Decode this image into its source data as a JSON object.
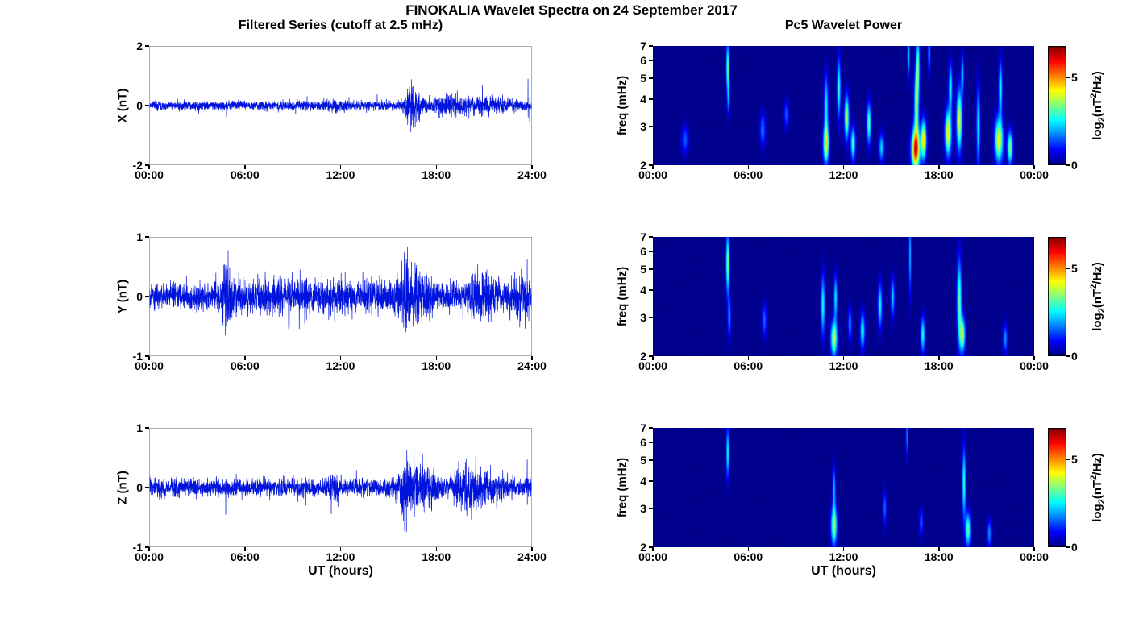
{
  "figure": {
    "title": "FINOKALIA Wavelet Spectra on 24 September 2017",
    "left_column_title": "Filtered Series (cutoff at 2.5 mHz)",
    "right_column_title": "Pc5 Wavelet Power",
    "x_axis_label": "UT (hours)",
    "colorbar_label_parts": [
      "log",
      "2",
      "(nT",
      "2",
      "/Hz)"
    ],
    "colorbar_ticks": [
      0,
      5
    ],
    "line_color": "#0013dd",
    "background_color": "#ffffff"
  },
  "chart_data": [
    {
      "id": "x_filtered_series",
      "type": "line",
      "ylabel": "X (nT)",
      "xlim": [
        0,
        24
      ],
      "ylim": [
        -2,
        2
      ],
      "yticks": [
        -2,
        0,
        2
      ],
      "xticks": [
        0,
        6,
        12,
        18,
        24
      ],
      "xtick_labels": [
        "00:00",
        "06:00",
        "12:00",
        "18:00",
        "24:00"
      ],
      "line_color": "#0013dd",
      "noise_base": 0.075,
      "seed": 101,
      "bursts": [
        {
          "t": 11.5,
          "width": 0.5,
          "amp": 0.04
        },
        {
          "t": 16.4,
          "width": 0.35,
          "amp": 0.26
        },
        {
          "t": 17.0,
          "width": 0.3,
          "amp": 0.16
        },
        {
          "t": 18.6,
          "width": 0.5,
          "amp": 0.09
        },
        {
          "t": 19.6,
          "width": 0.8,
          "amp": 0.07
        },
        {
          "t": 21.0,
          "width": 0.6,
          "amp": 0.07
        },
        {
          "t": 22.3,
          "width": 0.5,
          "amp": 0.07
        }
      ],
      "spikes": [
        {
          "t": 4.85,
          "amp": -0.28
        },
        {
          "t": 9.9,
          "amp": 0.25
        },
        {
          "t": 14.3,
          "amp": 0.22
        },
        {
          "t": 16.45,
          "amp": 0.5
        },
        {
          "t": 19.6,
          "amp": 0.32
        },
        {
          "t": 20.9,
          "amp": 0.4
        },
        {
          "t": 23.75,
          "amp": 0.8
        },
        {
          "t": 23.85,
          "amp": -0.45
        }
      ]
    },
    {
      "id": "y_filtered_series",
      "type": "line",
      "ylabel": "Y (nT)",
      "xlim": [
        0,
        24
      ],
      "ylim": [
        -1,
        1
      ],
      "yticks": [
        -1,
        0,
        1
      ],
      "xticks": [
        0,
        6,
        12,
        18,
        24
      ],
      "xtick_labels": [
        "00:00",
        "06:00",
        "12:00",
        "18:00",
        "24:00"
      ],
      "line_color": "#0013dd",
      "noise_base": 0.11,
      "seed": 202,
      "bursts": [
        {
          "t": 4.9,
          "width": 0.25,
          "amp": 0.2
        },
        {
          "t": 8.0,
          "width": 2.0,
          "amp": 0.035
        },
        {
          "t": 12.0,
          "width": 2.5,
          "amp": 0.04
        },
        {
          "t": 16.2,
          "width": 0.4,
          "amp": 0.2
        },
        {
          "t": 17.3,
          "width": 0.5,
          "amp": 0.09
        },
        {
          "t": 21.0,
          "width": 0.7,
          "amp": 0.09
        },
        {
          "t": 23.3,
          "width": 0.4,
          "amp": 0.09
        }
      ],
      "spikes": [
        {
          "t": 4.95,
          "amp": 0.48
        },
        {
          "t": 6.2,
          "amp": -0.3
        },
        {
          "t": 9.85,
          "amp": 0.45
        },
        {
          "t": 13.4,
          "amp": 0.34
        },
        {
          "t": 15.3,
          "amp": 0.33
        },
        {
          "t": 16.3,
          "amp": 0.5
        },
        {
          "t": 20.6,
          "amp": 0.38
        },
        {
          "t": 23.7,
          "amp": 0.62
        },
        {
          "t": 23.8,
          "amp": -0.42
        }
      ]
    },
    {
      "id": "z_filtered_series",
      "type": "line",
      "ylabel": "Z (nT)",
      "xlim": [
        0,
        24
      ],
      "ylim": [
        -1,
        1
      ],
      "yticks": [
        -1,
        0,
        1
      ],
      "xticks": [
        0,
        6,
        12,
        18,
        24
      ],
      "xtick_labels": [
        "00:00",
        "06:00",
        "12:00",
        "18:00",
        "24:00"
      ],
      "line_color": "#0013dd",
      "noise_base": 0.075,
      "seed": 303,
      "bursts": [
        {
          "t": 11.5,
          "width": 0.4,
          "amp": 0.05
        },
        {
          "t": 16.3,
          "width": 0.5,
          "amp": 0.2
        },
        {
          "t": 17.6,
          "width": 0.4,
          "amp": 0.11
        },
        {
          "t": 19.6,
          "width": 0.5,
          "amp": 0.13
        },
        {
          "t": 20.6,
          "width": 0.5,
          "amp": 0.11
        },
        {
          "t": 22.0,
          "width": 0.6,
          "amp": 0.05
        }
      ],
      "spikes": [
        {
          "t": 4.8,
          "amp": -0.34
        },
        {
          "t": 10.0,
          "amp": 0.28
        },
        {
          "t": 13.0,
          "amp": 0.22
        },
        {
          "t": 16.35,
          "amp": 0.48
        },
        {
          "t": 16.9,
          "amp": 0.42
        },
        {
          "t": 19.7,
          "amp": 0.38
        },
        {
          "t": 23.7,
          "amp": 0.36
        }
      ]
    },
    {
      "id": "x_wavelet_power",
      "type": "heatmap",
      "ylabel": "freq (mHz)",
      "xlim": [
        0,
        24
      ],
      "ylim": [
        2,
        7
      ],
      "yscale": "log",
      "yticks": [
        2,
        3,
        4,
        5,
        6,
        7
      ],
      "xticks": [
        0,
        6,
        12,
        18,
        24
      ],
      "xtick_labels": [
        "00:00",
        "06:00",
        "12:00",
        "18:00",
        "00:00"
      ],
      "clim": [
        0,
        6.8
      ],
      "colormap": "jet",
      "seed": 11,
      "events": [
        {
          "t": 2.0,
          "f": 2.6,
          "dt": 0.15,
          "dlf": 0.1,
          "amp": 1.4
        },
        {
          "t": 4.7,
          "f": 5.6,
          "dt": 0.07,
          "dlf": 0.18,
          "amp": 3.2
        },
        {
          "t": 4.75,
          "f": 4.0,
          "dt": 0.06,
          "dlf": 0.12,
          "amp": 1.6
        },
        {
          "t": 6.9,
          "f": 2.9,
          "dt": 0.12,
          "dlf": 0.12,
          "amp": 1.6
        },
        {
          "t": 8.4,
          "f": 3.4,
          "dt": 0.1,
          "dlf": 0.1,
          "amp": 1.4
        },
        {
          "t": 10.9,
          "f": 2.5,
          "dt": 0.12,
          "dlf": 0.14,
          "amp": 4.2
        },
        {
          "t": 10.9,
          "f": 3.8,
          "dt": 0.09,
          "dlf": 0.22,
          "amp": 2.4
        },
        {
          "t": 11.7,
          "f": 4.5,
          "dt": 0.08,
          "dlf": 0.22,
          "amp": 2.8
        },
        {
          "t": 12.2,
          "f": 3.3,
          "dt": 0.1,
          "dlf": 0.16,
          "amp": 3.6
        },
        {
          "t": 12.6,
          "f": 2.5,
          "dt": 0.1,
          "dlf": 0.12,
          "amp": 3.0
        },
        {
          "t": 13.6,
          "f": 3.1,
          "dt": 0.1,
          "dlf": 0.15,
          "amp": 3.0
        },
        {
          "t": 14.4,
          "f": 2.4,
          "dt": 0.12,
          "dlf": 0.1,
          "amp": 2.2
        },
        {
          "t": 16.1,
          "f": 6.3,
          "dt": 0.05,
          "dlf": 0.15,
          "amp": 2.4
        },
        {
          "t": 16.55,
          "f": 2.35,
          "dt": 0.18,
          "dlf": 0.15,
          "amp": 5.8
        },
        {
          "t": 16.6,
          "f": 3.8,
          "dt": 0.1,
          "dlf": 0.28,
          "amp": 3.4
        },
        {
          "t": 16.7,
          "f": 5.8,
          "dt": 0.07,
          "dlf": 0.2,
          "amp": 2.8
        },
        {
          "t": 17.05,
          "f": 2.6,
          "dt": 0.12,
          "dlf": 0.14,
          "amp": 4.4
        },
        {
          "t": 17.4,
          "f": 6.5,
          "dt": 0.05,
          "dlf": 0.14,
          "amp": 2.2
        },
        {
          "t": 18.6,
          "f": 2.8,
          "dt": 0.14,
          "dlf": 0.16,
          "amp": 4.4
        },
        {
          "t": 18.75,
          "f": 4.5,
          "dt": 0.08,
          "dlf": 0.18,
          "amp": 2.6
        },
        {
          "t": 19.3,
          "f": 3.2,
          "dt": 0.12,
          "dlf": 0.22,
          "amp": 4.0
        },
        {
          "t": 19.5,
          "f": 5.2,
          "dt": 0.06,
          "dlf": 0.15,
          "amp": 2.2
        },
        {
          "t": 20.5,
          "f": 3.0,
          "dt": 0.08,
          "dlf": 0.3,
          "amp": 2.4
        },
        {
          "t": 21.8,
          "f": 2.6,
          "dt": 0.18,
          "dlf": 0.16,
          "amp": 4.2
        },
        {
          "t": 21.9,
          "f": 4.5,
          "dt": 0.08,
          "dlf": 0.2,
          "amp": 2.6
        },
        {
          "t": 22.5,
          "f": 2.4,
          "dt": 0.12,
          "dlf": 0.12,
          "amp": 3.4
        }
      ]
    },
    {
      "id": "y_wavelet_power",
      "type": "heatmap",
      "ylabel": "freq (mHz)",
      "xlim": [
        0,
        24
      ],
      "ylim": [
        2,
        7
      ],
      "yscale": "log",
      "yticks": [
        2,
        3,
        4,
        5,
        6,
        7
      ],
      "xticks": [
        0,
        6,
        12,
        18,
        24
      ],
      "xtick_labels": [
        "00:00",
        "06:00",
        "12:00",
        "18:00",
        "00:00"
      ],
      "clim": [
        0,
        6.8
      ],
      "colormap": "jet",
      "seed": 22,
      "events": [
        {
          "t": 4.7,
          "f": 5.3,
          "dt": 0.08,
          "dlf": 0.22,
          "amp": 3.4
        },
        {
          "t": 4.8,
          "f": 3.0,
          "dt": 0.07,
          "dlf": 0.15,
          "amp": 1.8
        },
        {
          "t": 7.0,
          "f": 2.9,
          "dt": 0.1,
          "dlf": 0.12,
          "amp": 1.5
        },
        {
          "t": 10.7,
          "f": 3.4,
          "dt": 0.09,
          "dlf": 0.22,
          "amp": 2.6
        },
        {
          "t": 11.4,
          "f": 2.4,
          "dt": 0.14,
          "dlf": 0.13,
          "amp": 3.8
        },
        {
          "t": 11.5,
          "f": 3.7,
          "dt": 0.08,
          "dlf": 0.16,
          "amp": 2.4
        },
        {
          "t": 12.4,
          "f": 2.8,
          "dt": 0.08,
          "dlf": 0.12,
          "amp": 1.8
        },
        {
          "t": 13.2,
          "f": 2.6,
          "dt": 0.1,
          "dlf": 0.13,
          "amp": 2.6
        },
        {
          "t": 14.3,
          "f": 3.4,
          "dt": 0.09,
          "dlf": 0.16,
          "amp": 2.6
        },
        {
          "t": 15.1,
          "f": 3.7,
          "dt": 0.08,
          "dlf": 0.14,
          "amp": 2.2
        },
        {
          "t": 16.2,
          "f": 5.8,
          "dt": 0.05,
          "dlf": 0.28,
          "amp": 2.2
        },
        {
          "t": 17.0,
          "f": 2.5,
          "dt": 0.1,
          "dlf": 0.13,
          "amp": 2.6
        },
        {
          "t": 19.3,
          "f": 3.6,
          "dt": 0.1,
          "dlf": 0.3,
          "amp": 3.2
        },
        {
          "t": 19.5,
          "f": 2.5,
          "dt": 0.12,
          "dlf": 0.13,
          "amp": 3.6
        },
        {
          "t": 22.2,
          "f": 2.4,
          "dt": 0.1,
          "dlf": 0.1,
          "amp": 1.8
        }
      ]
    },
    {
      "id": "z_wavelet_power",
      "type": "heatmap",
      "ylabel": "freq (mHz)",
      "xlim": [
        0,
        24
      ],
      "ylim": [
        2,
        7
      ],
      "yscale": "log",
      "yticks": [
        2,
        3,
        4,
        5,
        6,
        7
      ],
      "xticks": [
        0,
        6,
        12,
        18,
        24
      ],
      "xtick_labels": [
        "00:00",
        "06:00",
        "12:00",
        "18:00",
        "00:00"
      ],
      "clim": [
        0,
        6.8
      ],
      "colormap": "jet",
      "seed": 33,
      "events": [
        {
          "t": 4.7,
          "f": 5.4,
          "dt": 0.07,
          "dlf": 0.18,
          "amp": 2.6
        },
        {
          "t": 11.4,
          "f": 2.5,
          "dt": 0.13,
          "dlf": 0.14,
          "amp": 3.6
        },
        {
          "t": 11.4,
          "f": 3.7,
          "dt": 0.07,
          "dlf": 0.16,
          "amp": 2.0
        },
        {
          "t": 14.6,
          "f": 3.0,
          "dt": 0.08,
          "dlf": 0.12,
          "amp": 1.5
        },
        {
          "t": 16.0,
          "f": 6.4,
          "dt": 0.04,
          "dlf": 0.15,
          "amp": 1.8
        },
        {
          "t": 16.9,
          "f": 2.6,
          "dt": 0.08,
          "dlf": 0.1,
          "amp": 1.5
        },
        {
          "t": 19.6,
          "f": 3.9,
          "dt": 0.08,
          "dlf": 0.26,
          "amp": 2.8
        },
        {
          "t": 19.85,
          "f": 2.4,
          "dt": 0.11,
          "dlf": 0.12,
          "amp": 3.2
        },
        {
          "t": 21.2,
          "f": 2.3,
          "dt": 0.1,
          "dlf": 0.1,
          "amp": 1.7
        }
      ]
    }
  ]
}
